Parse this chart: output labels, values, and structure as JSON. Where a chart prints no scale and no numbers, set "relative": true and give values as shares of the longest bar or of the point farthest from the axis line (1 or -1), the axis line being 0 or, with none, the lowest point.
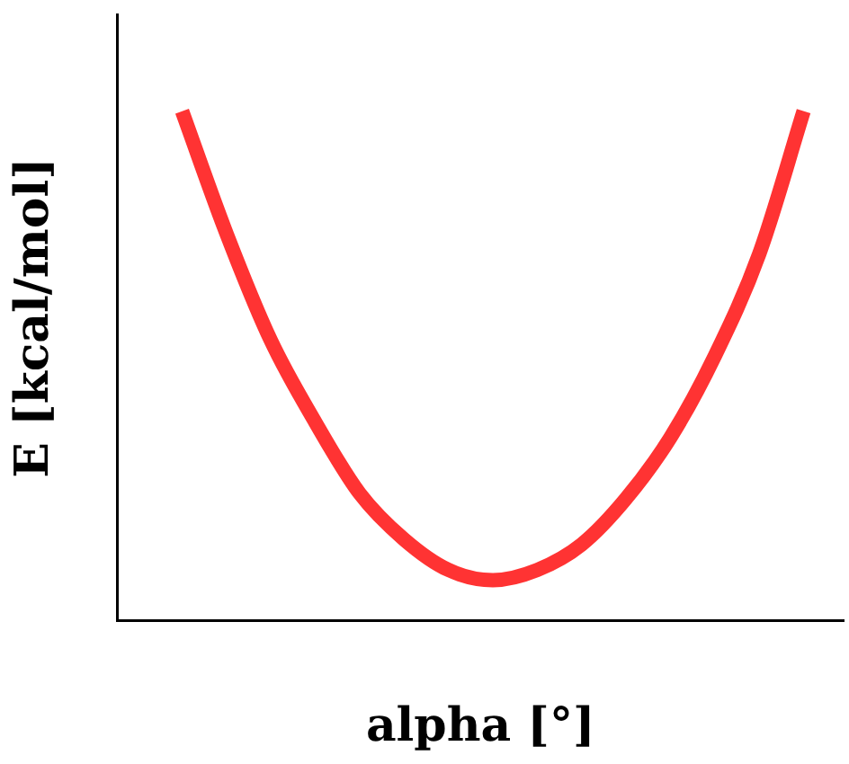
{
  "chart_data": {
    "type": "line",
    "relative": true,
    "xlabel": "alpha [°]",
    "ylabel": "E [kcal/mol]",
    "categories": [
      null,
      null,
      null,
      null,
      null,
      null,
      null,
      null,
      null,
      null,
      null,
      null,
      null,
      null,
      null
    ],
    "series": [
      {
        "color": "#ff3333",
        "values": [
          1,
          0.76,
          0.55,
          0.39,
          0.25,
          0.16,
          0.1,
          0.08,
          0.1,
          0.15,
          0.24,
          0.36,
          0.52,
          0.72,
          1
        ]
      }
    ],
    "marker": "none",
    "line_style": "solid",
    "grid": false,
    "legend": false
  }
}
